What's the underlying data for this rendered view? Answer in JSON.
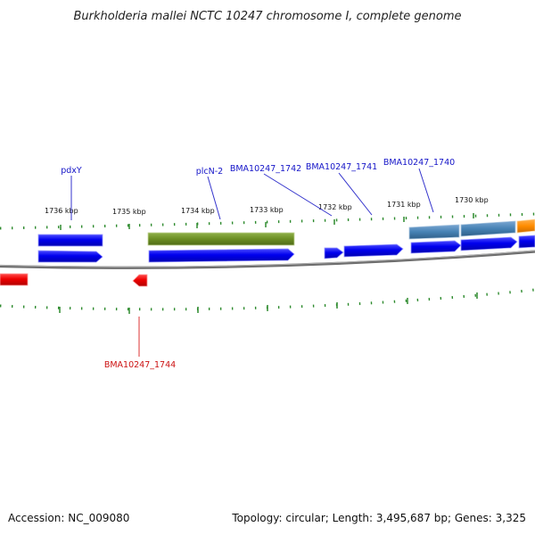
{
  "title": "Burkholderia mallei NCTC 10247 chromosome I, complete genome",
  "footer": {
    "accession": "Accession: NC_009080",
    "stats": "Topology: circular; Length: 3,495,687 bp; Genes: 3,325"
  },
  "colors": {
    "forward_cds": "#0000ee",
    "reverse_cds": "#ee0000",
    "olive_gene": "#6b8e23",
    "steel_gene": "#4682b4",
    "orange_gene": "#ff8c00",
    "ticks": "#2e8b2e",
    "backbone": "#888888",
    "forward_label": "#1515c8",
    "reverse_label": "#cc1111"
  },
  "scale_labels": [
    "1736 kbp",
    "1735 kbp",
    "1734 kbp",
    "1733 kbp",
    "1732 kbp",
    "1731 kbp",
    "1730 kbp"
  ],
  "genes": [
    {
      "name": "pdxY",
      "strand": "+",
      "color": "blue",
      "labeled": true
    },
    {
      "name": "plcN-2",
      "strand": "+",
      "color": "olive",
      "labeled": true
    },
    {
      "name": "BMA10247_1742",
      "strand": "+",
      "color": "blue",
      "labeled": true
    },
    {
      "name": "BMA10247_1741",
      "strand": "+",
      "color": "blue",
      "labeled": true
    },
    {
      "name": "BMA10247_1740",
      "strand": "+",
      "color": "steelblue",
      "labeled": true
    },
    {
      "name": "BMA10247_1744",
      "strand": "-",
      "color": "red",
      "labeled": true
    }
  ]
}
